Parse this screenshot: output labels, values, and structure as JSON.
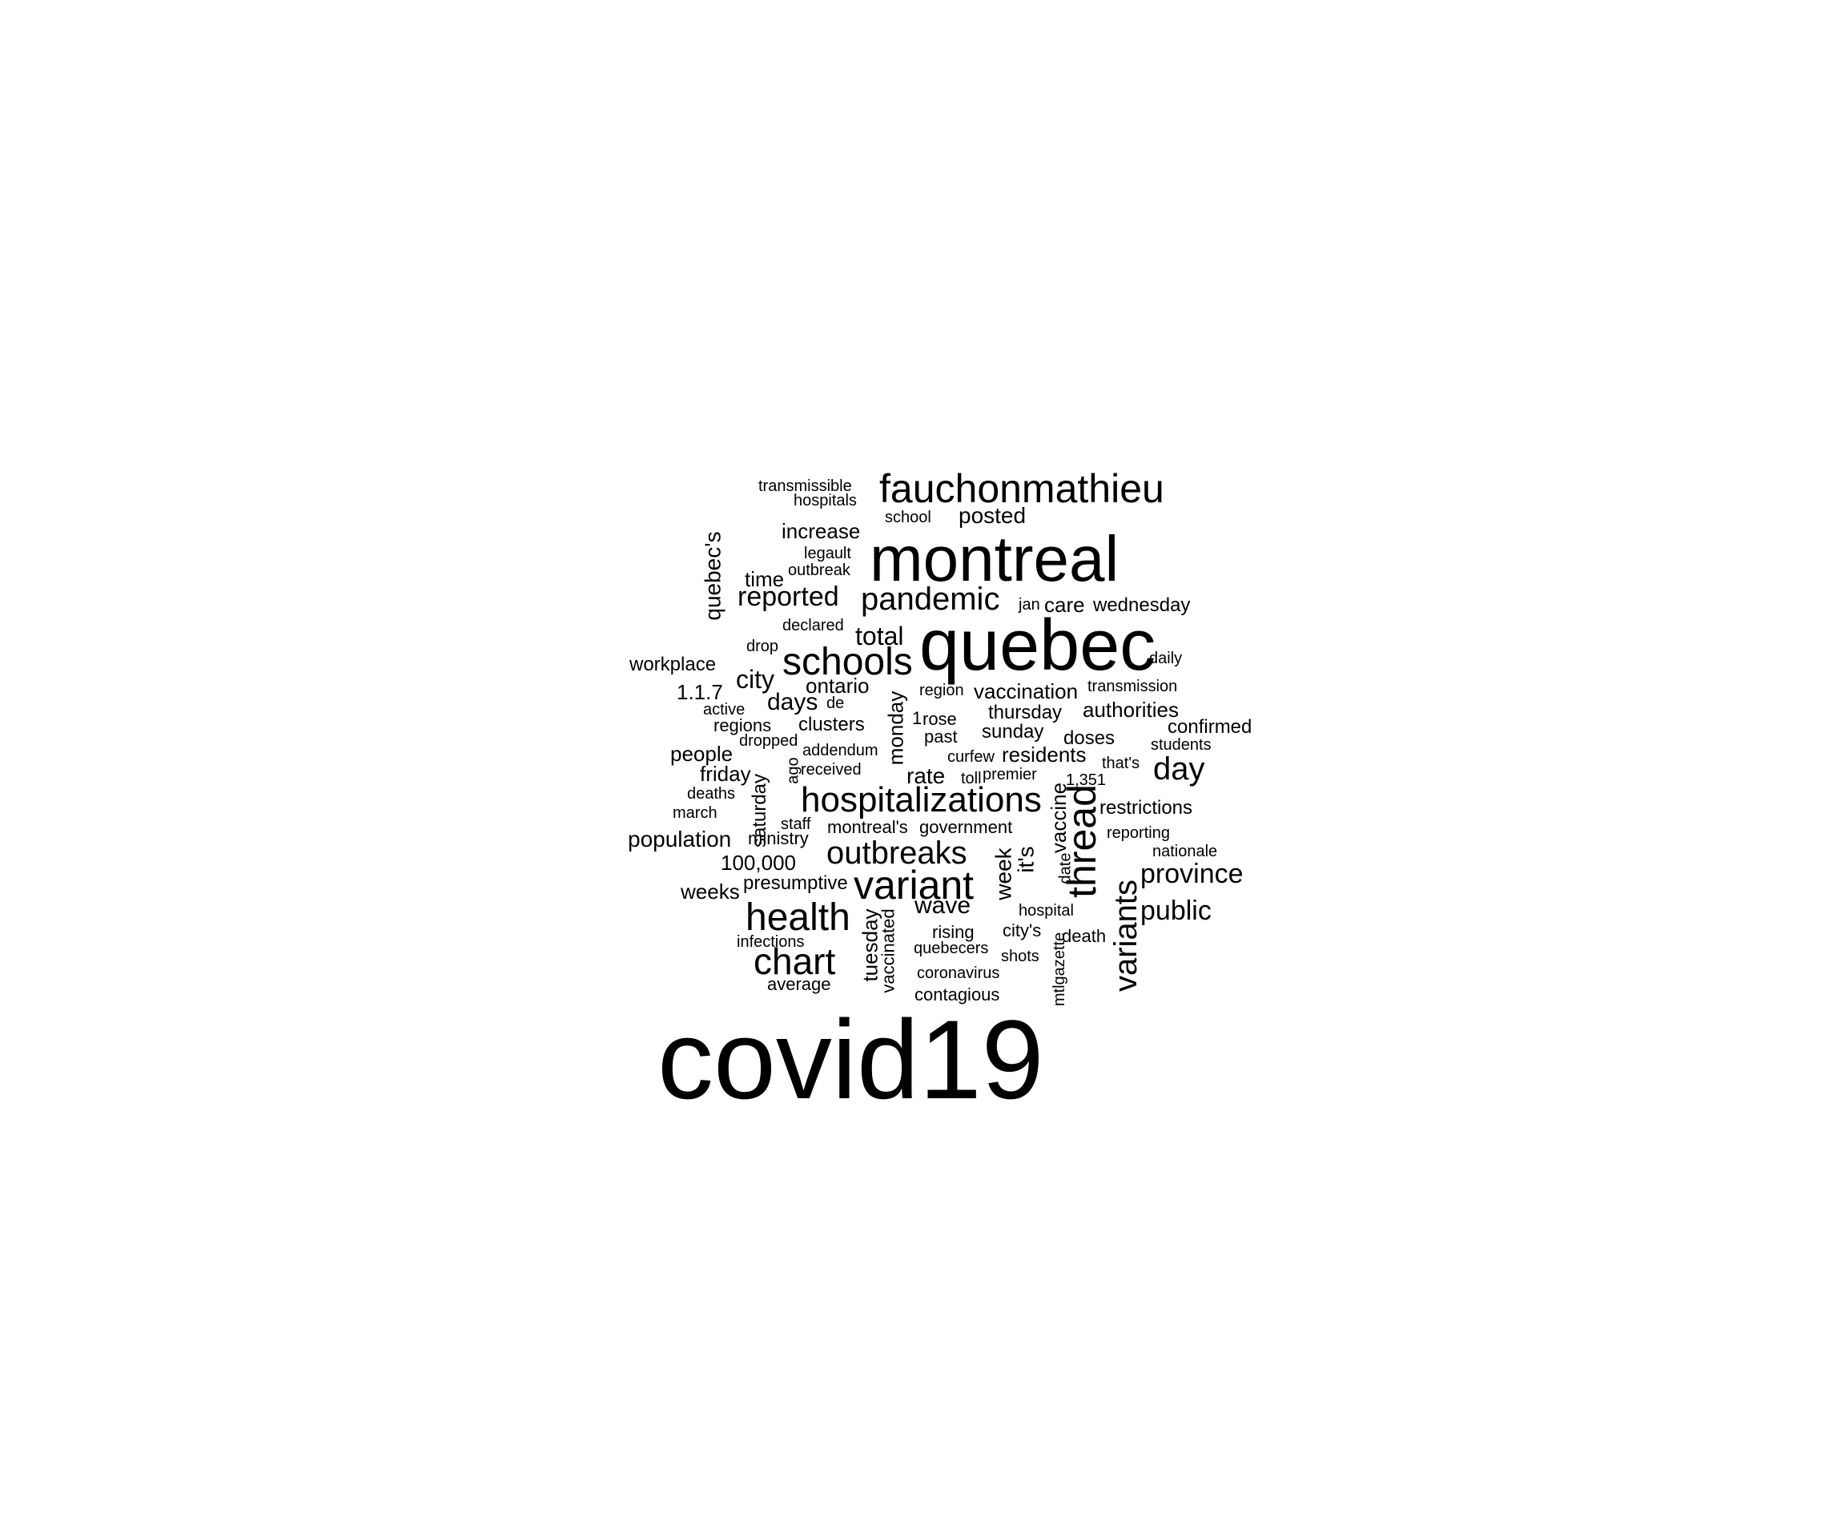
{
  "word_cloud": {
    "text_color": "#000000",
    "background_color": "#ffffff",
    "words": [
      {
        "text": "covid19",
        "rank": 1
      },
      {
        "text": "quebec",
        "rank": 2
      },
      {
        "text": "montreal",
        "rank": 3
      },
      {
        "text": "fauchonmathieu",
        "rank": 4
      },
      {
        "text": "hospitalizations",
        "rank": 5
      },
      {
        "text": "variant",
        "rank": 6
      },
      {
        "text": "health",
        "rank": 7
      },
      {
        "text": "thread",
        "rank": 8
      },
      {
        "text": "schools",
        "rank": 9
      },
      {
        "text": "pandemic",
        "rank": 10
      },
      {
        "text": "chart",
        "rank": 11
      },
      {
        "text": "outbreaks",
        "rank": 12
      },
      {
        "text": "variants",
        "rank": 13
      },
      {
        "text": "day",
        "rank": 14
      },
      {
        "text": "reported",
        "rank": 15
      },
      {
        "text": "province",
        "rank": 16
      },
      {
        "text": "public",
        "rank": 17
      },
      {
        "text": "total",
        "rank": 18
      },
      {
        "text": "wave",
        "rank": 19
      },
      {
        "text": "city",
        "rank": 20
      },
      {
        "text": "days",
        "rank": 21
      },
      {
        "text": "quebec's",
        "rank": 22
      },
      {
        "text": "population",
        "rank": 23
      },
      {
        "text": "rate",
        "rank": 24
      },
      {
        "text": "week",
        "rank": 25
      },
      {
        "text": "posted",
        "rank": 26
      },
      {
        "text": "it's",
        "rank": 27
      },
      {
        "text": "vaccine",
        "rank": 28
      },
      {
        "text": "monday",
        "rank": 29
      },
      {
        "text": "tuesday",
        "rank": 30
      },
      {
        "text": "friday",
        "rank": 31
      },
      {
        "text": "people",
        "rank": 32
      },
      {
        "text": "care",
        "rank": 33
      },
      {
        "text": "time",
        "rank": 34
      },
      {
        "text": "authorities",
        "rank": 35
      },
      {
        "text": "residents",
        "rank": 36
      },
      {
        "text": "vaccination",
        "rank": 37
      },
      {
        "text": "ontario",
        "rank": 38
      },
      {
        "text": "increase",
        "rank": 39
      },
      {
        "text": "restrictions",
        "rank": 40
      },
      {
        "text": "1.1.7",
        "rank": 41
      },
      {
        "text": "100,000",
        "rank": 42
      },
      {
        "text": "weeks",
        "rank": 43
      },
      {
        "text": "workplace",
        "rank": 44
      },
      {
        "text": "clusters",
        "rank": 45
      },
      {
        "text": "thursday",
        "rank": 46
      },
      {
        "text": "sunday",
        "rank": 47
      },
      {
        "text": "doses",
        "rank": 48
      },
      {
        "text": "confirmed",
        "rank": 49
      },
      {
        "text": "saturday",
        "rank": 50
      },
      {
        "text": "wednesday",
        "rank": 51
      },
      {
        "text": "presumptive",
        "rank": 52
      },
      {
        "text": "montreal's",
        "rank": 53
      },
      {
        "text": "government",
        "rank": 54
      },
      {
        "text": "ministry",
        "rank": 55
      },
      {
        "text": "past",
        "rank": 56
      },
      {
        "text": "average",
        "rank": 57
      },
      {
        "text": "vaccinated",
        "rank": 58
      },
      {
        "text": "1",
        "rank": 59
      },
      {
        "text": "rose",
        "rank": 60
      },
      {
        "text": "regions",
        "rank": 61
      },
      {
        "text": "transmissible",
        "rank": 62
      },
      {
        "text": "hospitals",
        "rank": 63
      },
      {
        "text": "school",
        "rank": 64
      },
      {
        "text": "legault",
        "rank": 65
      },
      {
        "text": "outbreak",
        "rank": 66
      },
      {
        "text": "declared",
        "rank": 67
      },
      {
        "text": "drop",
        "rank": 68
      },
      {
        "text": "jan",
        "rank": 69
      },
      {
        "text": "daily",
        "rank": 70
      },
      {
        "text": "region",
        "rank": 71
      },
      {
        "text": "transmission",
        "rank": 72
      },
      {
        "text": "active",
        "rank": 73
      },
      {
        "text": "de",
        "rank": 74
      },
      {
        "text": "dropped",
        "rank": 75
      },
      {
        "text": "addendum",
        "rank": 76
      },
      {
        "text": "curfew",
        "rank": 77
      },
      {
        "text": "students",
        "rank": 78
      },
      {
        "text": "that's",
        "rank": 79
      },
      {
        "text": "ago",
        "rank": 80
      },
      {
        "text": "received",
        "rank": 81
      },
      {
        "text": "toll",
        "rank": 82
      },
      {
        "text": "premier",
        "rank": 83
      },
      {
        "text": "1,351",
        "rank": 84
      },
      {
        "text": "deaths",
        "rank": 85
      },
      {
        "text": "march",
        "rank": 86
      },
      {
        "text": "staff",
        "rank": 87
      },
      {
        "text": "reporting",
        "rank": 88
      },
      {
        "text": "date",
        "rank": 89
      },
      {
        "text": "nationale",
        "rank": 90
      },
      {
        "text": "hospital",
        "rank": 91
      },
      {
        "text": "rising",
        "rank": 92
      },
      {
        "text": "city's",
        "rank": 93
      },
      {
        "text": "infections",
        "rank": 94
      },
      {
        "text": "quebecers",
        "rank": 95
      },
      {
        "text": "shots",
        "rank": 96
      },
      {
        "text": "death",
        "rank": 97
      },
      {
        "text": "coronavirus",
        "rank": 98
      },
      {
        "text": "contagious",
        "rank": 99
      },
      {
        "text": "mtlgazette",
        "rank": 100
      }
    ]
  }
}
